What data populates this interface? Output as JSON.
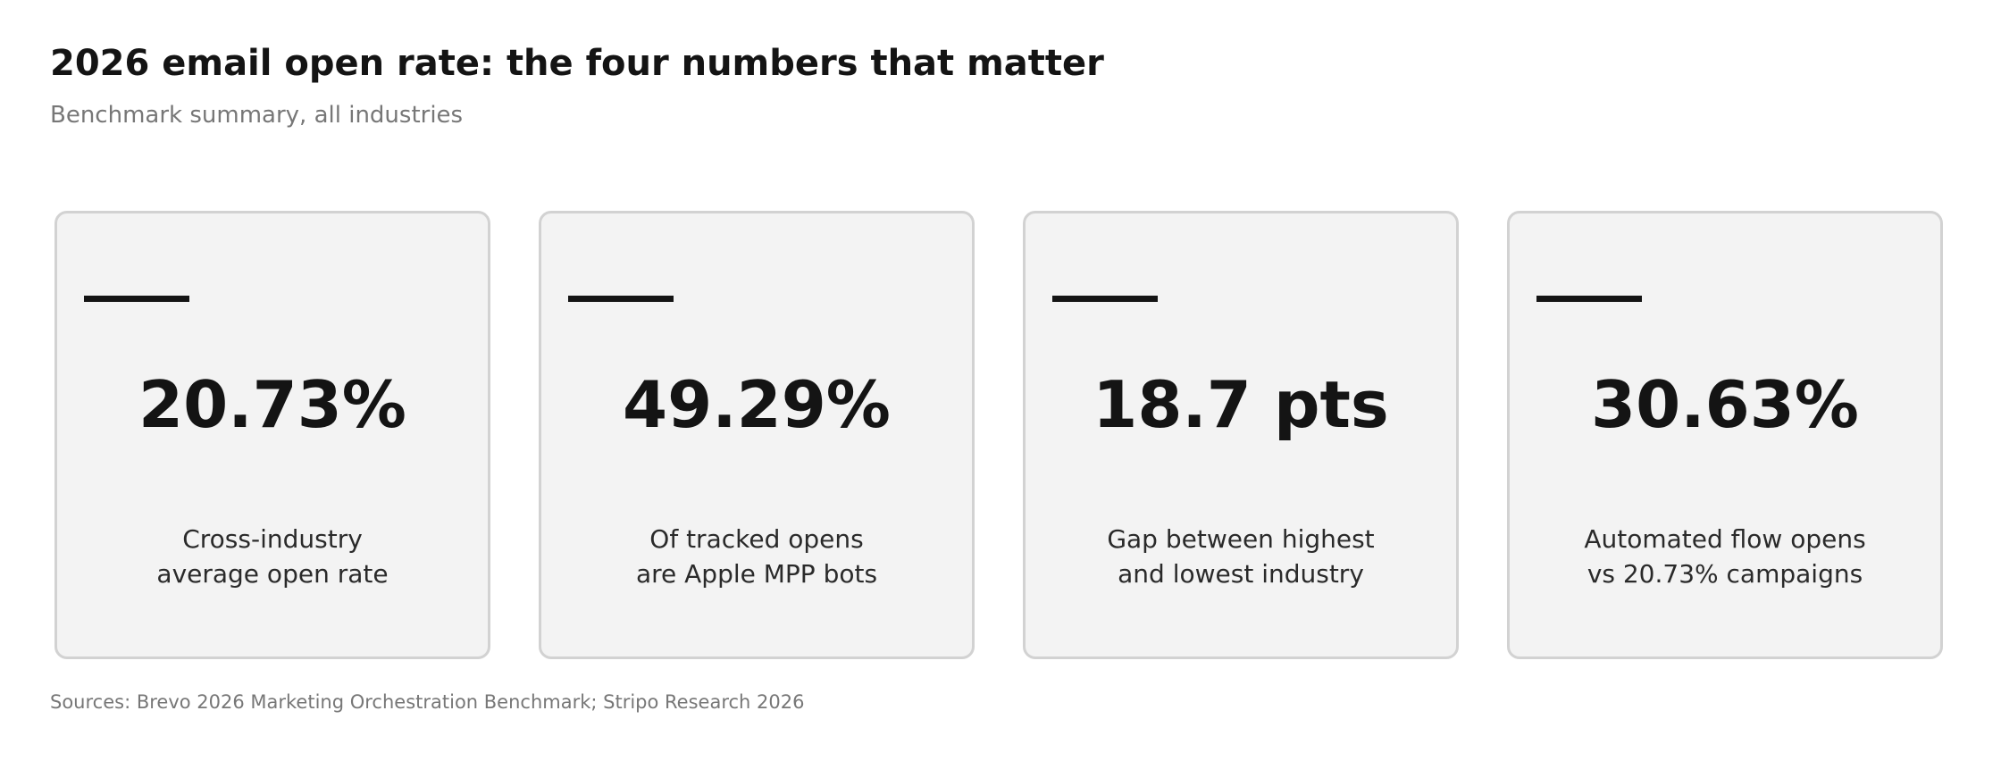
{
  "title": "2026 email open rate: the four numbers that matter",
  "subtitle": "Benchmark summary, all industries",
  "sources": "Sources: Brevo 2026 Marketing Orchestration Benchmark; Stripo Research 2026",
  "colors": {
    "card_background": "#f3f3f3",
    "card_border": "#d2d2d2",
    "accent": "#141414",
    "muted_text": "#777777"
  },
  "chart_data": {
    "type": "table",
    "title": "2026 email open rate: the four numbers that matter",
    "subtitle": "Benchmark summary, all industries",
    "cards": [
      {
        "value": "20.73%",
        "caption_lines": [
          "Cross-industry",
          "average open rate"
        ]
      },
      {
        "value": "49.29%",
        "caption_lines": [
          "Of tracked opens",
          "are Apple MPP bots"
        ]
      },
      {
        "value": "18.7 pts",
        "caption_lines": [
          "Gap between highest",
          "and lowest industry"
        ]
      },
      {
        "value": "30.63%",
        "caption_lines": [
          "Automated flow opens",
          "vs 20.73% campaigns"
        ]
      }
    ]
  }
}
